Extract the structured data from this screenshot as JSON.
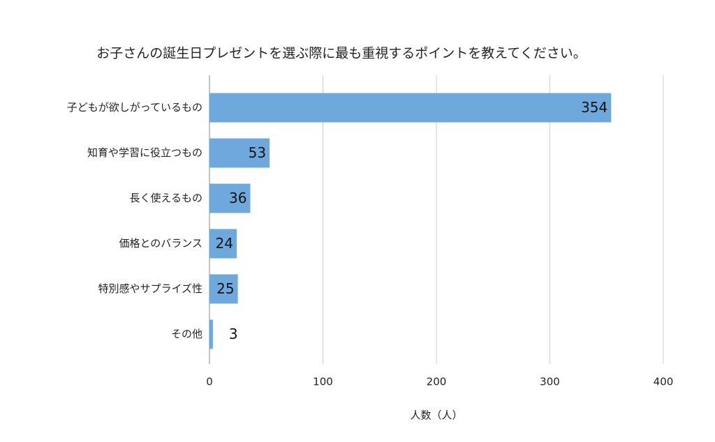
{
  "chart_data": {
    "type": "barh",
    "title": "お子さんの誕生日プレゼントを選ぶ際に最も重視するポイントを教えてください。",
    "x_label": "人数（人）",
    "categories": [
      "子どもが欲しがっているもの",
      "知育や学習に役立つもの",
      "長く使えるもの",
      "価格とのバランス",
      "特別感やサプライズ性",
      "その他"
    ],
    "values": [
      354,
      53,
      36,
      24,
      25,
      3
    ],
    "color": "#6fa8dc",
    "xlim": [
      0,
      400
    ],
    "xticks": [
      0,
      100,
      200,
      300,
      400
    ],
    "grid": true
  }
}
